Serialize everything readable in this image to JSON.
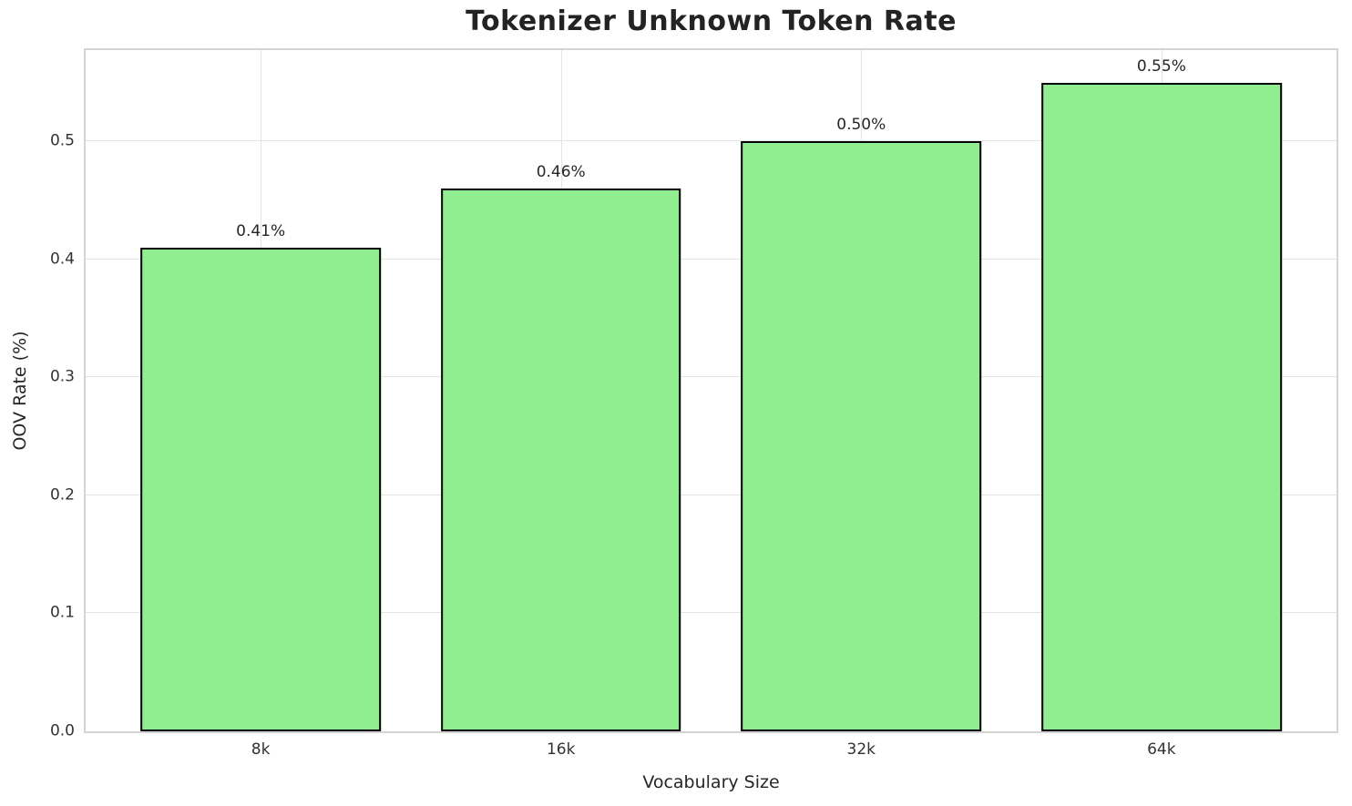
{
  "chart_data": {
    "type": "bar",
    "title": "Tokenizer Unknown Token Rate",
    "xlabel": "Vocabulary Size",
    "ylabel": "OOV Rate (%)",
    "categories": [
      "8k",
      "16k",
      "32k",
      "64k"
    ],
    "values": [
      0.41,
      0.46,
      0.5,
      0.55
    ],
    "bar_labels": [
      "0.41%",
      "0.46%",
      "0.50%",
      "0.55%"
    ],
    "yticks": [
      0.0,
      0.1,
      0.2,
      0.3,
      0.4,
      0.5
    ],
    "ytick_labels": [
      "0.0",
      "0.1",
      "0.2",
      "0.3",
      "0.4",
      "0.5"
    ],
    "ylim": [
      0,
      0.5775
    ],
    "grid": true,
    "legend": null,
    "bar_color": "#90EE90",
    "bar_edge_color": "#000000",
    "grid_color": "#e4e4e4",
    "spine_color": "#d4d4d4",
    "background_color": "#ffffff",
    "bar_width_fraction": 0.8
  }
}
